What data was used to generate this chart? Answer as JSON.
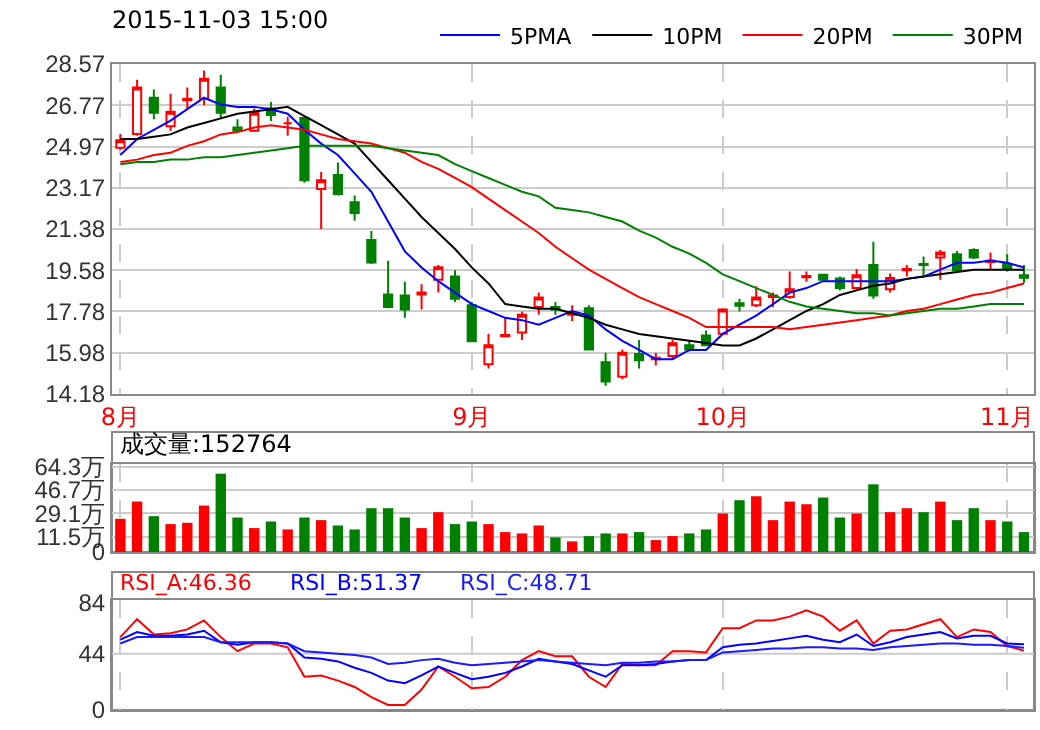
{
  "chart_data": [
    {
      "type": "candlestick",
      "title": "2015-11-03 15:00",
      "categories": [
        "8月",
        null,
        null,
        null,
        null,
        null,
        null,
        null,
        null,
        null,
        null,
        null,
        null,
        null,
        null,
        null,
        null,
        null,
        null,
        null,
        null,
        "9月",
        null,
        null,
        null,
        null,
        null,
        null,
        null,
        null,
        null,
        null,
        null,
        null,
        null,
        null,
        "10月",
        null,
        null,
        null,
        null,
        null,
        null,
        null,
        null,
        null,
        null,
        null,
        null,
        null,
        null,
        null,
        null,
        "11月",
        null
      ],
      "ohlc": [
        [
          24.92,
          25.52,
          24.83,
          25.25
        ],
        [
          25.52,
          27.88,
          25.44,
          27.54
        ],
        [
          27.1,
          27.46,
          26.16,
          26.44
        ],
        [
          25.86,
          27.27,
          25.66,
          26.49
        ],
        [
          26.99,
          27.54,
          26.63,
          27.05
        ],
        [
          27.05,
          28.29,
          26.77,
          27.93
        ],
        [
          27.54,
          28.1,
          26.16,
          26.44
        ],
        [
          25.8,
          26.16,
          25.61,
          25.66
        ],
        [
          25.66,
          26.63,
          25.61,
          26.44
        ],
        [
          26.63,
          26.91,
          26.08,
          26.35
        ],
        [
          25.99,
          26.27,
          25.44,
          25.99
        ],
        [
          26.22,
          26.27,
          23.39,
          23.5
        ],
        [
          23.12,
          23.86,
          21.37,
          23.5
        ],
        [
          23.73,
          24.28,
          22.84,
          22.9
        ],
        [
          22.54,
          22.84,
          21.73,
          22.07
        ],
        [
          20.9,
          21.29,
          19.85,
          19.91
        ],
        [
          18.52,
          19.99,
          17.92,
          17.97
        ],
        [
          18.47,
          19.08,
          17.5,
          17.86
        ],
        [
          18.52,
          18.97,
          17.86,
          18.61
        ],
        [
          19.16,
          19.8,
          18.61,
          19.71
        ],
        [
          19.3,
          19.58,
          18.19,
          18.33
        ],
        [
          18.05,
          18.19,
          16.48,
          16.48
        ],
        [
          15.48,
          16.81,
          15.29,
          16.31
        ],
        [
          16.7,
          17.5,
          16.67,
          16.75
        ],
        [
          16.86,
          17.78,
          16.53,
          17.64
        ],
        [
          17.97,
          18.61,
          17.64,
          18.39
        ],
        [
          17.97,
          18.19,
          17.64,
          17.86
        ],
        [
          17.64,
          18.05,
          17.36,
          17.69
        ],
        [
          17.92,
          18.05,
          16.12,
          16.12
        ],
        [
          15.56,
          15.98,
          14.54,
          14.73
        ],
        [
          14.93,
          16.12,
          14.82,
          15.98
        ],
        [
          15.92,
          16.53,
          15.29,
          15.65
        ],
        [
          15.7,
          15.98,
          15.42,
          15.76
        ],
        [
          15.84,
          16.53,
          15.7,
          16.39
        ],
        [
          16.31,
          16.53,
          16.03,
          16.12
        ],
        [
          16.73,
          16.95,
          16.26,
          16.31
        ],
        [
          16.81,
          17.92,
          16.75,
          17.86
        ],
        [
          18.14,
          18.33,
          17.78,
          18.03
        ],
        [
          18.05,
          18.88,
          17.97,
          18.39
        ],
        [
          18.41,
          18.61,
          17.97,
          18.47
        ],
        [
          18.41,
          19.52,
          18.33,
          18.75
        ],
        [
          19.27,
          19.52,
          19.08,
          19.33
        ],
        [
          19.38,
          19.41,
          19.13,
          19.16
        ],
        [
          19.22,
          19.3,
          18.69,
          18.8
        ],
        [
          18.8,
          19.63,
          18.69,
          19.36
        ],
        [
          19.8,
          20.82,
          18.33,
          18.47
        ],
        [
          18.75,
          19.44,
          18.61,
          19.24
        ],
        [
          19.58,
          19.8,
          19.3,
          19.63
        ],
        [
          19.85,
          20.18,
          19.36,
          19.8
        ],
        [
          20.13,
          20.46,
          19.16,
          20.35
        ],
        [
          20.27,
          20.41,
          19.52,
          19.58
        ],
        [
          20.46,
          20.54,
          20.07,
          20.13
        ],
        [
          19.94,
          20.35,
          19.63,
          19.99
        ],
        [
          19.85,
          20.27,
          19.52,
          19.63
        ],
        [
          19.36,
          19.8,
          19.02,
          19.25
        ]
      ],
      "colors": [
        "#ff0000",
        "#ff0000",
        "#008000",
        "#ff0000",
        "#ff0000",
        "#ff0000",
        "#008000",
        "#008000",
        "#ff0000",
        "#008000",
        "#ff0000",
        "#008000",
        "#ff0000",
        "#008000",
        "#008000",
        "#008000",
        "#008000",
        "#008000",
        "#ff0000",
        "#ff0000",
        "#008000",
        "#008000",
        "#ff0000",
        "#ff0000",
        "#ff0000",
        "#ff0000",
        "#008000",
        "#ff0000",
        "#008000",
        "#008000",
        "#ff0000",
        "#008000",
        "#ff0000",
        "#ff0000",
        "#008000",
        "#008000",
        "#ff0000",
        "#008000",
        "#ff0000",
        "#ff0000",
        "#ff0000",
        "#ff0000",
        "#008000",
        "#008000",
        "#ff0000",
        "#008000",
        "#ff0000",
        "#ff0000",
        "#008000",
        "#ff0000",
        "#008000",
        "#008000",
        "#ff0000",
        "#008000",
        "#008000"
      ],
      "series": [
        {
          "name": "5PMA",
          "type": "line",
          "color": "#0000ff",
          "values": [
            24.6,
            25.3,
            25.7,
            26.1,
            26.6,
            27.1,
            26.8,
            26.7,
            26.7,
            26.6,
            26.4,
            25.7,
            25.1,
            24.6,
            23.8,
            23.0,
            21.7,
            20.4,
            19.7,
            19.1,
            18.6,
            18.1,
            17.8,
            17.5,
            17.4,
            17.2,
            17.5,
            17.8,
            17.6,
            17.0,
            16.5,
            16.1,
            15.7,
            15.7,
            16.1,
            16.1,
            16.8,
            17.2,
            17.6,
            18.1,
            18.6,
            18.8,
            19.1,
            19.1,
            19.1,
            19.1,
            19.1,
            19.2,
            19.3,
            19.6,
            19.9,
            19.9,
            20.0,
            19.9,
            19.7
          ]
        },
        {
          "name": "10PM",
          "type": "line",
          "color": "#000000",
          "values": [
            25.3,
            25.3,
            25.4,
            25.5,
            25.8,
            26.0,
            26.2,
            26.4,
            26.5,
            26.6,
            26.7,
            26.3,
            25.9,
            25.5,
            25.1,
            24.3,
            23.5,
            22.7,
            21.9,
            21.2,
            20.5,
            19.7,
            19.0,
            18.1,
            18.0,
            17.9,
            17.9,
            17.7,
            17.5,
            17.2,
            17.0,
            16.8,
            16.7,
            16.6,
            16.5,
            16.4,
            16.3,
            16.3,
            16.6,
            17.0,
            17.4,
            17.8,
            18.1,
            18.5,
            18.7,
            18.9,
            19.0,
            19.2,
            19.3,
            19.4,
            19.5,
            19.6,
            19.6,
            19.6,
            19.6
          ]
        },
        {
          "name": "20PM",
          "type": "line",
          "color": "#ff0000",
          "values": [
            24.3,
            24.4,
            24.6,
            24.7,
            25.0,
            25.2,
            25.5,
            25.6,
            25.8,
            25.9,
            25.8,
            25.7,
            25.5,
            25.3,
            25.2,
            25.1,
            24.9,
            24.7,
            24.3,
            24.0,
            23.6,
            23.2,
            22.7,
            22.2,
            21.7,
            21.2,
            20.6,
            20.1,
            19.6,
            19.2,
            18.8,
            18.4,
            18.1,
            17.8,
            17.5,
            17.1,
            17.1,
            17.1,
            17.1,
            17.1,
            17.0,
            17.1,
            17.2,
            17.3,
            17.4,
            17.5,
            17.6,
            17.8,
            17.9,
            18.1,
            18.3,
            18.5,
            18.6,
            18.8,
            19.0
          ]
        },
        {
          "name": "30PM",
          "type": "line",
          "color": "#008000",
          "values": [
            24.2,
            24.3,
            24.3,
            24.4,
            24.4,
            24.5,
            24.5,
            24.6,
            24.7,
            24.8,
            24.9,
            25.0,
            25.0,
            25.0,
            25.0,
            25.0,
            24.9,
            24.8,
            24.7,
            24.6,
            24.2,
            23.9,
            23.6,
            23.3,
            23.0,
            22.8,
            22.3,
            22.2,
            22.1,
            21.9,
            21.7,
            21.3,
            21.0,
            20.6,
            20.3,
            19.9,
            19.4,
            19.1,
            18.8,
            18.5,
            18.2,
            18.0,
            17.9,
            17.8,
            17.7,
            17.7,
            17.6,
            17.7,
            17.8,
            17.9,
            17.9,
            18.0,
            18.1,
            18.1,
            18.1
          ]
        }
      ],
      "ylim": [
        14.18,
        28.57
      ],
      "yticks": [
        14.18,
        15.98,
        17.78,
        19.58,
        21.38,
        23.17,
        24.97,
        26.77,
        28.57
      ],
      "grid": true,
      "legend": "top right"
    },
    {
      "type": "bar",
      "annotations": [
        "成交量:152764"
      ],
      "categories": [
        null,
        null,
        null,
        null,
        null,
        null,
        null,
        null,
        null,
        null,
        null,
        null,
        null,
        null,
        null,
        null,
        null,
        null,
        null,
        null,
        null,
        null,
        null,
        null,
        null,
        null,
        null,
        null,
        null,
        null,
        null,
        null,
        null,
        null,
        null,
        null,
        null,
        null,
        null,
        null,
        null,
        null,
        null,
        null,
        null,
        null,
        null,
        null,
        null,
        null,
        null,
        null,
        null,
        null,
        null
      ],
      "values": [
        25,
        38,
        27,
        21,
        22,
        35,
        59,
        26,
        18,
        23,
        17,
        26,
        24,
        20,
        17,
        33,
        33,
        26,
        18,
        30,
        21,
        23,
        21,
        15,
        14,
        20,
        11,
        8,
        12,
        14,
        14,
        15,
        9,
        12,
        14,
        17,
        29,
        39,
        42,
        24,
        38,
        36,
        41,
        26,
        29,
        51,
        30,
        33,
        30,
        38,
        24,
        33,
        24,
        23,
        15
      ],
      "colors": [
        "#ff0000",
        "#ff0000",
        "#008000",
        "#ff0000",
        "#ff0000",
        "#ff0000",
        "#008000",
        "#008000",
        "#ff0000",
        "#008000",
        "#ff0000",
        "#008000",
        "#ff0000",
        "#008000",
        "#008000",
        "#008000",
        "#008000",
        "#008000",
        "#ff0000",
        "#ff0000",
        "#008000",
        "#008000",
        "#ff0000",
        "#ff0000",
        "#ff0000",
        "#ff0000",
        "#008000",
        "#ff0000",
        "#008000",
        "#008000",
        "#ff0000",
        "#008000",
        "#ff0000",
        "#ff0000",
        "#008000",
        "#008000",
        "#ff0000",
        "#008000",
        "#ff0000",
        "#ff0000",
        "#ff0000",
        "#ff0000",
        "#008000",
        "#008000",
        "#ff0000",
        "#008000",
        "#ff0000",
        "#ff0000",
        "#008000",
        "#ff0000",
        "#008000",
        "#008000",
        "#ff0000",
        "#008000",
        "#008000"
      ],
      "ylim": [
        0,
        66.3
      ],
      "yticks": [
        0,
        {
          "value": 11.5,
          "label": "11.5万"
        },
        {
          "value": 29.1,
          "label": "29.1万"
        },
        {
          "value": 46.7,
          "label": "46.7万"
        },
        {
          "value": 64.3,
          "label": "64.3万"
        }
      ],
      "grid": true,
      "tick_labels": "y"
    },
    {
      "type": "line",
      "categories": [
        null,
        null,
        null,
        null,
        null,
        null,
        null,
        null,
        null,
        null,
        null,
        null,
        null,
        null,
        null,
        null,
        null,
        null,
        null,
        null,
        null,
        null,
        null,
        null,
        null,
        null,
        null,
        null,
        null,
        null,
        null,
        null,
        null,
        null,
        null,
        null,
        null,
        null,
        null,
        null,
        null,
        null,
        null,
        null,
        null,
        null,
        null,
        null,
        null,
        null,
        null,
        null,
        null,
        null,
        null
      ],
      "series": [
        {
          "name": "RSI_A:46.36",
          "color": "#ff0000",
          "values": [
            57,
            71,
            59,
            60,
            63,
            70,
            57,
            46,
            52,
            52,
            49,
            26,
            27,
            23,
            18,
            10,
            4,
            4,
            16,
            34,
            26,
            17,
            18,
            26,
            39,
            46,
            42,
            42,
            26,
            18,
            36,
            35,
            35,
            46,
            46,
            45,
            64,
            64,
            70,
            70,
            73,
            78,
            73,
            62,
            70,
            52,
            62,
            63,
            67,
            71,
            57,
            63,
            61,
            50,
            46.36
          ]
        },
        {
          "name": "RSI_B:51.37",
          "color": "#0000ff",
          "values": [
            55,
            61,
            58,
            58,
            59,
            62,
            53,
            51,
            53,
            53,
            52,
            41,
            40,
            38,
            33,
            29,
            23,
            21,
            27,
            34,
            29,
            24,
            26,
            29,
            34,
            40,
            38,
            36,
            31,
            26,
            35,
            35,
            36,
            38,
            39,
            39,
            49,
            51,
            52,
            54,
            56,
            58,
            55,
            53,
            59,
            50,
            53,
            57,
            59,
            61,
            56,
            58,
            58,
            52,
            51.37
          ]
        },
        {
          "name": "RSI_C:48.71",
          "color": "#1a1aff",
          "values": [
            52,
            57,
            57,
            57,
            57,
            57,
            53,
            53,
            53,
            53,
            52,
            46,
            45,
            44,
            43,
            41,
            36,
            37,
            39,
            40,
            37,
            35,
            36,
            37,
            38,
            39,
            38,
            37,
            36,
            35,
            37,
            37,
            38,
            38,
            39,
            39,
            45,
            46,
            47,
            48,
            48,
            49,
            49,
            48,
            48,
            47,
            49,
            50,
            51,
            52,
            52,
            51,
            51,
            50,
            48.71
          ]
        }
      ],
      "ylim": [
        0,
        86
      ],
      "yticks": [
        0,
        44,
        84
      ],
      "grid": "x",
      "ref_lines": [
        {
          "axis": "y",
          "value": 44,
          "color": "#cccccc"
        }
      ],
      "tick_labels": "y"
    }
  ]
}
